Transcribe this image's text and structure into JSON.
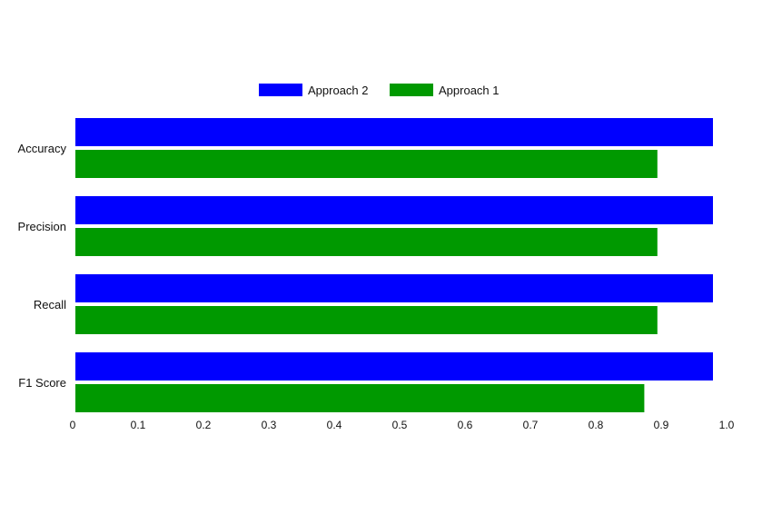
{
  "chart_data": {
    "type": "bar",
    "orientation": "horizontal",
    "categories": [
      "Accuracy",
      "Precision",
      "Recall",
      "F1 Score"
    ],
    "series": [
      {
        "name": "Approach 2",
        "color": "#0000ff",
        "values": [
          0.975,
          0.975,
          0.975,
          0.975
        ]
      },
      {
        "name": "Approach 1",
        "color": "#009900",
        "values": [
          0.89,
          0.89,
          0.89,
          0.87
        ]
      }
    ],
    "xlim": [
      0,
      1.0
    ],
    "xticks": [
      "0",
      "0.1",
      "0.2",
      "0.3",
      "0.4",
      "0.5",
      "0.6",
      "0.7",
      "0.8",
      "0.9",
      "1.0"
    ],
    "title": "",
    "xlabel": "",
    "ylabel": "",
    "grid": false,
    "legend_position": "top-center"
  }
}
